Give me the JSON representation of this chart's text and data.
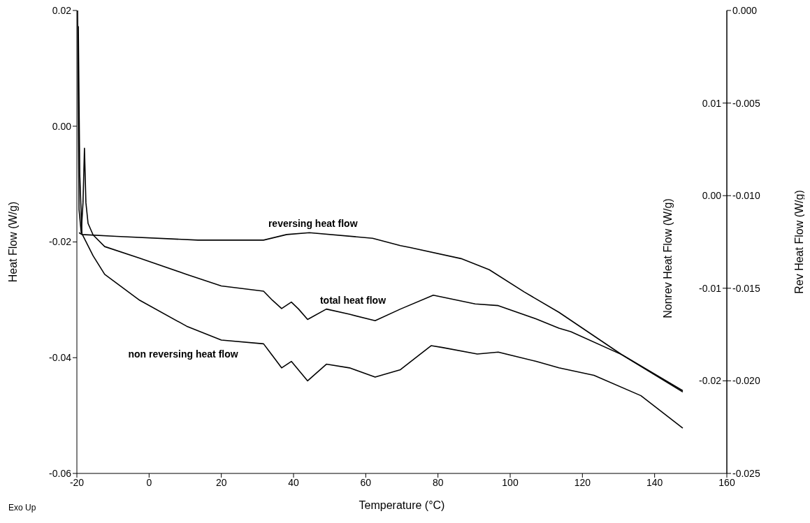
{
  "chart_data": {
    "type": "line",
    "xlabel": "Temperature (°C)",
    "ylabel": "Heat Flow (W/g)",
    "y2label": "Nonrev Heat Flow (W/g)",
    "y3label": "Rev Heat Flow (W/g)",
    "xlim": [
      -20,
      160
    ],
    "xticks": [
      -20,
      0,
      20,
      40,
      60,
      80,
      100,
      120,
      140,
      160
    ],
    "ylim": [
      -0.06,
      0.02
    ],
    "yticks": [
      -0.06,
      -0.04,
      -0.02,
      {
        "value": 0,
        "label": "0.00"
      },
      0.02
    ],
    "y2lim": [
      -0.03,
      0.02
    ],
    "y2ticks": [
      -0.02,
      -0.01,
      {
        "value": 0,
        "label": "0.00"
      },
      0.01
    ],
    "y3lim": [
      -0.025,
      0
    ],
    "y3ticks": [
      -0.025,
      {
        "value": -0.02,
        "label": "-0.020"
      },
      -0.015,
      {
        "value": -0.01,
        "label": "-0.010"
      },
      -0.005,
      {
        "value": 0,
        "label": "0.000"
      }
    ],
    "marker": "none",
    "line_style": "solid",
    "series": [
      {
        "name": "total heat flow",
        "color": "#000000",
        "x": [
          -19.8,
          -19.4,
          -18.8,
          -18.3,
          -17.9,
          -17.5,
          -16.9,
          -15.5,
          -12.3,
          -2.6,
          10.4,
          20,
          31.7,
          34.2,
          36.7,
          39.4,
          41.4,
          43.9,
          49.1,
          55.5,
          62.6,
          69.6,
          78.7,
          90.3,
          96.7,
          107.2,
          113.5,
          116.8,
          131,
          147.8
        ],
        "values": [
          0.02,
          -0.0144,
          -0.0184,
          -0.0132,
          -0.0038,
          -0.0132,
          -0.0168,
          -0.0188,
          -0.0208,
          -0.0228,
          -0.0256,
          -0.0276,
          -0.0285,
          -0.0301,
          -0.0315,
          -0.0304,
          -0.0316,
          -0.0334,
          -0.0316,
          -0.0325,
          -0.0336,
          -0.0316,
          -0.0292,
          -0.0307,
          -0.031,
          -0.0333,
          -0.0349,
          -0.0355,
          -0.0395,
          -0.0457
        ]
      },
      {
        "name": "non reversing heat flow",
        "color": "#000000",
        "axis": "y2",
        "x": [
          -19.6,
          -19.2,
          -18.6,
          -15.5,
          -12.3,
          -2.6,
          10.4,
          20,
          31.7,
          34.2,
          36.7,
          39.4,
          43.9,
          49.1,
          55.5,
          62.6,
          69.6,
          78.1,
          81.2,
          90.9,
          96.7,
          107.2,
          113.5,
          123.2,
          136.2,
          147.8
        ],
        "values": [
          0.0183,
          0.0023,
          -0.0041,
          -0.0065,
          -0.0085,
          -0.0113,
          -0.0141,
          -0.0156,
          -0.016,
          -0.0173,
          -0.0186,
          -0.0179,
          -0.02,
          -0.0182,
          -0.0186,
          -0.0196,
          -0.0188,
          -0.0162,
          -0.0164,
          -0.0171,
          -0.0169,
          -0.0179,
          -0.0186,
          -0.0194,
          -0.0216,
          -0.0251
        ]
      },
      {
        "name": "reversing heat flow",
        "color": "#000000",
        "axis": "y3",
        "x": [
          -19.4,
          -18.6,
          -9,
          13.5,
          31.7,
          38.1,
          44.4,
          61.9,
          69.6,
          72.3,
          86.4,
          94.2,
          103.9,
          113.5,
          131,
          147.8
        ],
        "values": [
          -0.012,
          -0.0121,
          -0.0122,
          -0.0124,
          -0.0124,
          -0.0121,
          -0.012,
          -0.0123,
          -0.0127,
          -0.0128,
          -0.0134,
          -0.014,
          -0.0152,
          -0.0163,
          -0.0186,
          -0.0206
        ]
      }
    ],
    "annotations": [
      "Exo Up"
    ]
  }
}
